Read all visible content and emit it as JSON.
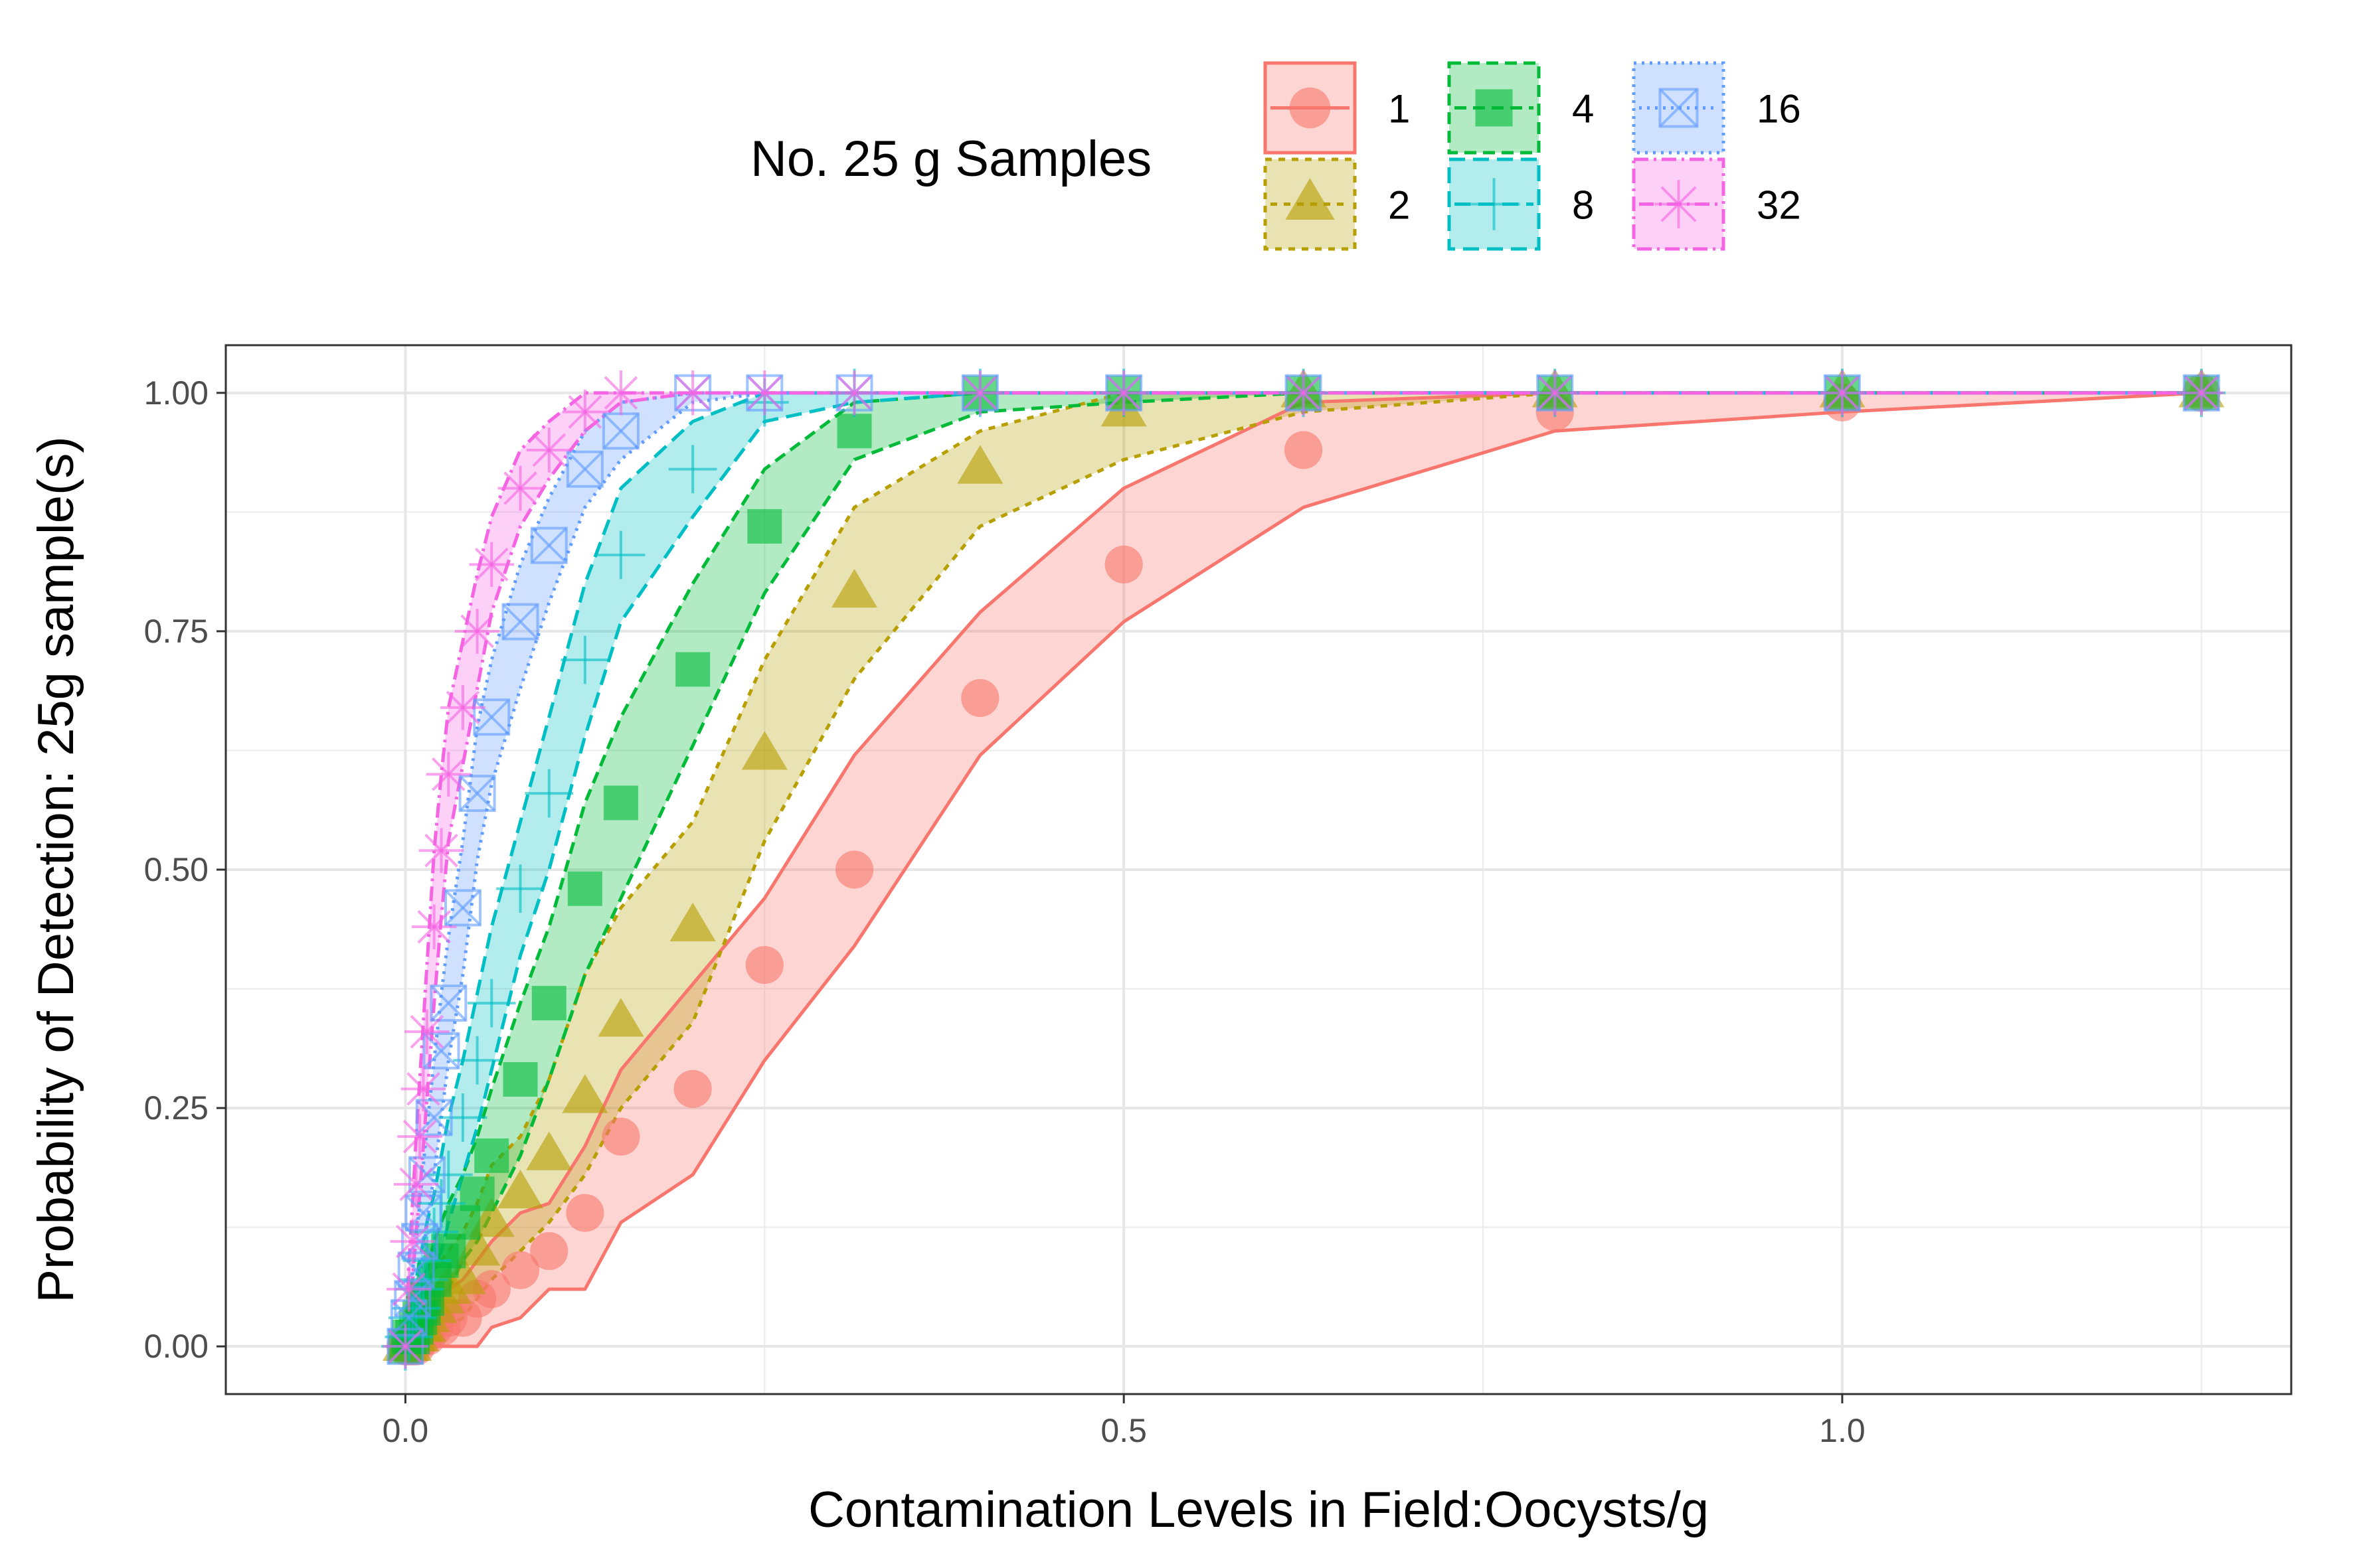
{
  "chart_data": {
    "type": "line",
    "xlabel": "Contamination Levels in Field:Oocysts/g",
    "ylabel": "Probability of Detection: 25g sample(s)",
    "xlim": [
      -0.125,
      1.3125
    ],
    "ylim": [
      -0.05,
      1.05
    ],
    "x_ticks": [
      0.0,
      0.5,
      1.0
    ],
    "x_tick_labels": [
      "0.0",
      "0.5",
      "1.0"
    ],
    "y_ticks": [
      0.0,
      0.25,
      0.5,
      0.75,
      1.0
    ],
    "y_tick_labels": [
      "0.00",
      "0.25",
      "0.50",
      "0.75",
      "1.00"
    ],
    "grid": true,
    "legend": {
      "title": "No. 25 g Samples",
      "placement": "top"
    },
    "x": [
      0,
      0.0025,
      0.005,
      0.0075,
      0.01,
      0.0125,
      0.015,
      0.02,
      0.025,
      0.03,
      0.04,
      0.05,
      0.06,
      0.08,
      0.1,
      0.125,
      0.15,
      0.2,
      0.25,
      0.3125,
      0.4,
      0.5,
      0.625,
      0.8,
      1.0,
      1.25
    ],
    "series": [
      {
        "name": "1",
        "color": "#F8766D",
        "dash": "",
        "shape": "circle",
        "values": [
          0,
          0,
          0,
          0,
          0.01,
          0.01,
          0.01,
          0.02,
          0.02,
          0.03,
          0.03,
          0.05,
          0.06,
          0.08,
          0.1,
          0.14,
          0.22,
          0.27,
          0.4,
          0.5,
          0.68,
          0.82,
          0.94,
          0.98,
          0.99,
          1.0
        ],
        "lower": [
          0,
          0,
          0,
          0,
          0,
          0,
          0,
          0,
          0,
          0,
          0,
          0,
          0.02,
          0.03,
          0.06,
          0.06,
          0.13,
          0.18,
          0.3,
          0.42,
          0.62,
          0.76,
          0.88,
          0.96,
          0.98,
          1.0
        ],
        "upper": [
          0,
          0.01,
          0.02,
          0.02,
          0.03,
          0.03,
          0.03,
          0.05,
          0.05,
          0.06,
          0.07,
          0.09,
          0.11,
          0.14,
          0.15,
          0.21,
          0.29,
          0.38,
          0.47,
          0.62,
          0.77,
          0.9,
          0.99,
          1.0,
          1.0,
          1.0
        ]
      },
      {
        "name": "2",
        "color": "#B79F00",
        "dash": "10,10",
        "shape": "triangle",
        "values": [
          0,
          0,
          0.01,
          0.01,
          0.02,
          0.02,
          0.03,
          0.04,
          0.05,
          0.06,
          0.07,
          0.1,
          0.13,
          0.16,
          0.2,
          0.26,
          0.34,
          0.44,
          0.62,
          0.79,
          0.92,
          0.98,
          1.0,
          1.0,
          1.0,
          1.0
        ],
        "lower": [
          0,
          0,
          0,
          0,
          0,
          0,
          0.01,
          0.01,
          0.02,
          0.02,
          0.03,
          0.05,
          0.07,
          0.1,
          0.13,
          0.18,
          0.25,
          0.34,
          0.53,
          0.7,
          0.86,
          0.93,
          0.98,
          1.0,
          1.0,
          1.0
        ],
        "upper": [
          0,
          0.01,
          0.02,
          0.03,
          0.04,
          0.05,
          0.06,
          0.08,
          0.09,
          0.1,
          0.12,
          0.15,
          0.19,
          0.22,
          0.28,
          0.39,
          0.46,
          0.55,
          0.72,
          0.88,
          0.96,
          1.0,
          1.0,
          1.0,
          1.0,
          1.0
        ]
      },
      {
        "name": "4",
        "color": "#00BA38",
        "dash": "18,10",
        "shape": "square",
        "values": [
          0,
          0.01,
          0.01,
          0.02,
          0.03,
          0.04,
          0.05,
          0.07,
          0.09,
          0.1,
          0.13,
          0.16,
          0.2,
          0.28,
          0.36,
          0.48,
          0.57,
          0.71,
          0.86,
          0.96,
          1.0,
          1.0,
          1.0,
          1.0,
          1.0,
          1.0
        ],
        "lower": [
          0,
          0,
          0,
          0.01,
          0.01,
          0.02,
          0.03,
          0.04,
          0.05,
          0.06,
          0.09,
          0.11,
          0.14,
          0.2,
          0.28,
          0.39,
          0.47,
          0.63,
          0.79,
          0.93,
          0.98,
          0.99,
          1.0,
          1.0,
          1.0,
          1.0
        ],
        "upper": [
          0,
          0.02,
          0.03,
          0.04,
          0.05,
          0.07,
          0.08,
          0.11,
          0.13,
          0.15,
          0.18,
          0.22,
          0.27,
          0.36,
          0.44,
          0.57,
          0.66,
          0.8,
          0.92,
          0.99,
          1.0,
          1.0,
          1.0,
          1.0,
          1.0,
          1.0
        ]
      },
      {
        "name": "8",
        "color": "#00BFC4",
        "dash": "24,12",
        "shape": "plus",
        "values": [
          0,
          0.01,
          0.03,
          0.04,
          0.06,
          0.07,
          0.09,
          0.12,
          0.15,
          0.18,
          0.24,
          0.3,
          0.36,
          0.48,
          0.58,
          0.72,
          0.83,
          0.92,
          0.99,
          1.0,
          1.0,
          1.0,
          1.0,
          1.0,
          1.0,
          1.0
        ],
        "lower": [
          0,
          0,
          0.01,
          0.02,
          0.03,
          0.04,
          0.06,
          0.08,
          0.1,
          0.13,
          0.18,
          0.23,
          0.29,
          0.41,
          0.5,
          0.64,
          0.76,
          0.87,
          0.97,
          0.99,
          1.0,
          1.0,
          1.0,
          1.0,
          1.0,
          1.0
        ],
        "upper": [
          0,
          0.03,
          0.05,
          0.07,
          0.09,
          0.11,
          0.13,
          0.16,
          0.2,
          0.24,
          0.3,
          0.37,
          0.44,
          0.55,
          0.66,
          0.8,
          0.9,
          0.97,
          1.0,
          1.0,
          1.0,
          1.0,
          1.0,
          1.0,
          1.0,
          1.0
        ]
      },
      {
        "name": "16",
        "color": "#619CFF",
        "dash": "4,8",
        "shape": "boxcross",
        "values": [
          0,
          0.03,
          0.05,
          0.08,
          0.11,
          0.14,
          0.18,
          0.24,
          0.31,
          0.36,
          0.46,
          0.58,
          0.66,
          0.76,
          0.84,
          0.92,
          0.96,
          1.0,
          1.0,
          1.0,
          1.0,
          1.0,
          1.0,
          1.0,
          1.0,
          1.0
        ],
        "lower": [
          0,
          0.01,
          0.03,
          0.05,
          0.07,
          0.1,
          0.13,
          0.18,
          0.24,
          0.3,
          0.39,
          0.51,
          0.59,
          0.69,
          0.78,
          0.88,
          0.93,
          0.99,
          1.0,
          1.0,
          1.0,
          1.0,
          1.0,
          1.0,
          1.0,
          1.0
        ],
        "upper": [
          0,
          0.05,
          0.08,
          0.11,
          0.15,
          0.19,
          0.23,
          0.3,
          0.37,
          0.43,
          0.53,
          0.65,
          0.72,
          0.82,
          0.89,
          0.96,
          0.99,
          1.0,
          1.0,
          1.0,
          1.0,
          1.0,
          1.0,
          1.0,
          1.0,
          1.0
        ]
      },
      {
        "name": "32",
        "color": "#F564E3",
        "dash": "22,8,4,8",
        "shape": "asterisk",
        "values": [
          0,
          0.06,
          0.11,
          0.17,
          0.22,
          0.27,
          0.33,
          0.44,
          0.52,
          0.6,
          0.67,
          0.75,
          0.82,
          0.9,
          0.94,
          0.98,
          1.0,
          1.0,
          1.0,
          1.0,
          1.0,
          1.0,
          1.0,
          1.0,
          1.0,
          1.0
        ],
        "lower": [
          0,
          0.03,
          0.07,
          0.12,
          0.16,
          0.21,
          0.26,
          0.36,
          0.45,
          0.53,
          0.61,
          0.69,
          0.77,
          0.86,
          0.91,
          0.96,
          0.99,
          1.0,
          1.0,
          1.0,
          1.0,
          1.0,
          1.0,
          1.0,
          1.0,
          1.0
        ],
        "upper": [
          0,
          0.09,
          0.15,
          0.22,
          0.28,
          0.34,
          0.4,
          0.52,
          0.6,
          0.67,
          0.74,
          0.81,
          0.87,
          0.94,
          0.97,
          1.0,
          1.0,
          1.0,
          1.0,
          1.0,
          1.0,
          1.0,
          1.0,
          1.0,
          1.0,
          1.0
        ]
      }
    ]
  }
}
